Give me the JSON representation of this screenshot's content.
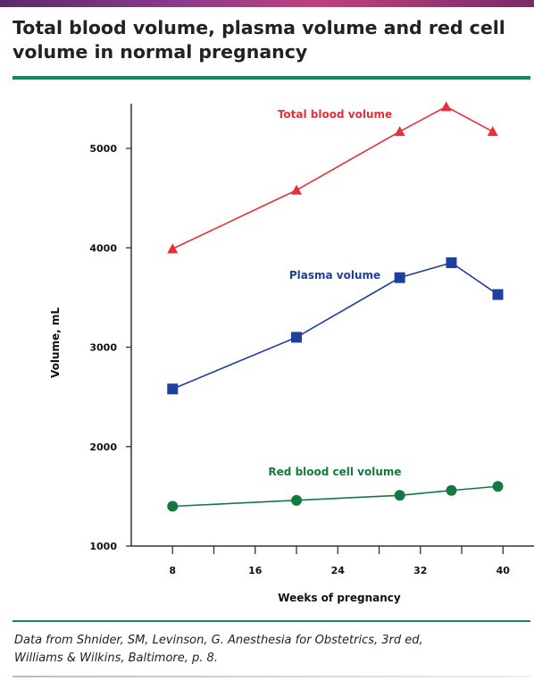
{
  "title_line1": "Total blood volume, plasma volume and red cell",
  "title_line2": "volume in normal pregnancy",
  "footnote_line1": "Data from Shnider, SM, Levinson, G. Anesthesia for Obstetrics, 3rd ed,",
  "footnote_line2": "Williams & Wilkins, Baltimore, p. 8.",
  "chart_data": {
    "type": "line",
    "xlabel": "Weeks of pregnancy",
    "ylabel": "Volume, mL",
    "xlim": [
      4,
      43
    ],
    "ylim": [
      1000,
      5450
    ],
    "xticks": [
      8,
      16,
      24,
      32,
      40
    ],
    "xminor": [
      12,
      20,
      28,
      36
    ],
    "yticks": [
      1000,
      2000,
      3000,
      4000,
      5000
    ],
    "grid": false,
    "series": [
      {
        "name": "Total blood volume",
        "color": "#e8303a",
        "marker": "triangle",
        "x": [
          8,
          20,
          30,
          34.5,
          39
        ],
        "y": [
          3990,
          4580,
          5170,
          5420,
          5170
        ]
      },
      {
        "name": "Plasma volume",
        "color": "#1f3f9c",
        "marker": "square",
        "x": [
          8,
          20,
          30,
          35,
          39.5
        ],
        "y": [
          2580,
          3100,
          3700,
          3850,
          3530
        ]
      },
      {
        "name": "Red blood cell volume",
        "color": "#137a3f",
        "marker": "circle",
        "x": [
          8,
          20,
          30,
          35,
          39.5
        ],
        "y": [
          1400,
          1460,
          1510,
          1560,
          1600
        ]
      }
    ]
  }
}
